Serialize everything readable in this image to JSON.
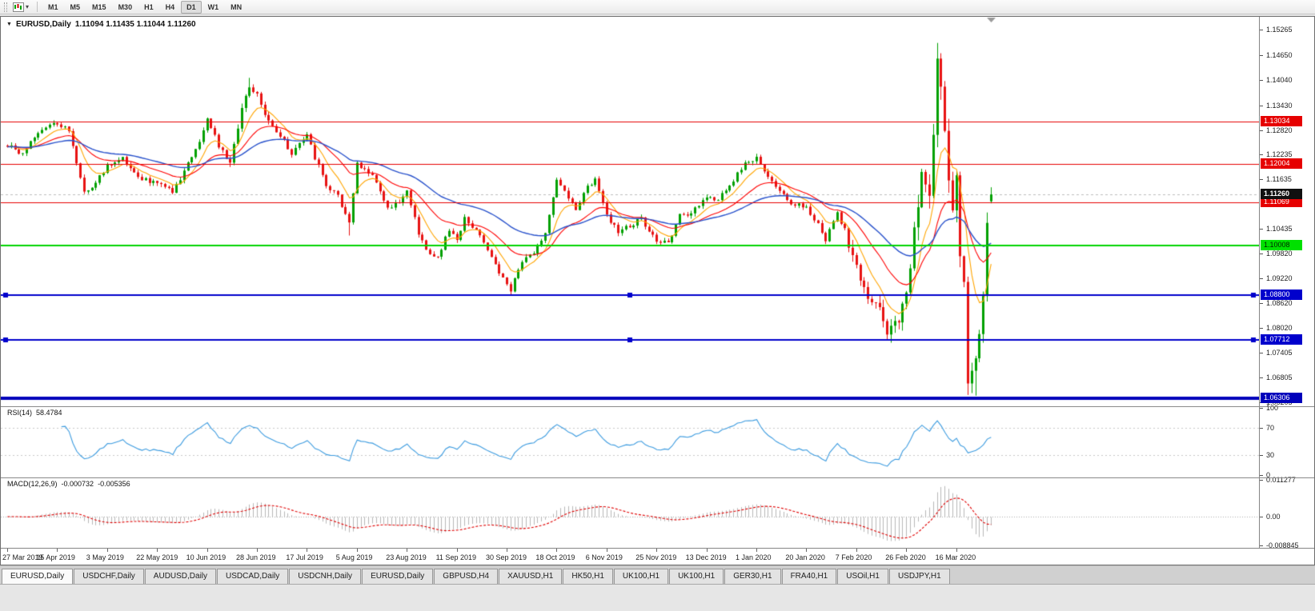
{
  "toolbar": {
    "timeframes": [
      "M1",
      "M5",
      "M15",
      "M30",
      "H1",
      "H4",
      "D1",
      "W1",
      "MN"
    ],
    "active_timeframe": "D1"
  },
  "chart": {
    "title": {
      "collapse_icon": "▼",
      "symbol_period": "EURUSD,Daily",
      "ohlc": "1.11094 1.11435 1.11044 1.11260"
    },
    "price_scale_ticks": [
      "1.15265",
      "1.14650",
      "1.14040",
      "1.13430",
      "1.12820",
      "1.12235",
      "1.11635",
      "1.10435",
      "1.09820",
      "1.09220",
      "1.08620",
      "1.08020",
      "1.07405",
      "1.06805",
      "1.06205"
    ],
    "current_price": {
      "value": "1.11260",
      "price": 1.1126,
      "label_bg": "#101010",
      "label_fg": "#ffffff"
    },
    "levels": [
      {
        "value": "1.13034",
        "price": 1.13034,
        "color": "#e60000",
        "label_bg": "#e60000",
        "label_fg": "#ffffff",
        "width": 1
      },
      {
        "value": "1.12004",
        "price": 1.12004,
        "color": "#e60000",
        "label_bg": "#e60000",
        "label_fg": "#ffffff",
        "width": 1
      },
      {
        "value": "1.11069",
        "price": 1.11069,
        "color": "#e60000",
        "label_bg": "#e60000",
        "label_fg": "#ffffff",
        "width": 1
      },
      {
        "value": "1.10008",
        "price": 1.10008,
        "color": "#00d400",
        "label_bg": "#00e000",
        "label_fg": "#002200",
        "width": 2
      },
      {
        "value": "1.08800",
        "price": 1.088,
        "color": "#0000cc",
        "label_bg": "#0000cc",
        "label_fg": "#ffffff",
        "width": 2,
        "handles": true
      },
      {
        "value": "1.07712",
        "price": 1.07712,
        "color": "#0000cc",
        "label_bg": "#0000cc",
        "label_fg": "#ffffff",
        "width": 2,
        "handles": true
      },
      {
        "value": "1.06306",
        "price": 1.06306,
        "color": "#0000bb",
        "label_bg": "#0000bb",
        "label_fg": "#ffffff",
        "width": 4
      }
    ]
  },
  "rsi": {
    "name": "RSI(14)",
    "value": "58.4784",
    "scale": [
      {
        "t": "100",
        "v": 100
      },
      {
        "t": "70",
        "v": 70
      },
      {
        "t": "30",
        "v": 30
      },
      {
        "t": "0",
        "v": 0
      }
    ],
    "levels": [
      70,
      30
    ]
  },
  "macd": {
    "name": "MACD(12,26,9)",
    "value_main": "-0.000732",
    "value_signal": "-0.005356",
    "scale": [
      {
        "t": "0.011277",
        "v": 0.011277
      },
      {
        "t": "0.00",
        "v": 0
      },
      {
        "t": "-0.008845",
        "v": -0.008845
      }
    ],
    "range": [
      0.011277,
      -0.008845
    ]
  },
  "time_axis": {
    "labels": [
      {
        "t": "27 Mar 2019",
        "i": 0
      },
      {
        "t": "15 Apr 2019",
        "i": 13
      },
      {
        "t": "3 May 2019",
        "i": 26
      },
      {
        "t": "22 May 2019",
        "i": 39
      },
      {
        "t": "10 Jun 2019",
        "i": 52
      },
      {
        "t": "28 Jun 2019",
        "i": 65
      },
      {
        "t": "17 Jul 2019",
        "i": 78
      },
      {
        "t": "5 Aug 2019",
        "i": 91
      },
      {
        "t": "23 Aug 2019",
        "i": 104
      },
      {
        "t": "11 Sep 2019",
        "i": 117
      },
      {
        "t": "30 Sep 2019",
        "i": 130
      },
      {
        "t": "18 Oct 2019",
        "i": 143
      },
      {
        "t": "6 Nov 2019",
        "i": 156
      },
      {
        "t": "25 Nov 2019",
        "i": 169
      },
      {
        "t": "13 Dec 2019",
        "i": 182
      },
      {
        "t": "1 Jan 2020",
        "i": 195
      },
      {
        "t": "20 Jan 2020",
        "i": 208
      },
      {
        "t": "7 Feb 2020",
        "i": 221
      },
      {
        "t": "26 Feb 2020",
        "i": 234
      },
      {
        "t": "16 Mar 2020",
        "i": 247
      }
    ]
  },
  "tabs": [
    {
      "label": "EURUSD,Daily",
      "active": true
    },
    {
      "label": "USDCHF,Daily"
    },
    {
      "label": "AUDUSD,Daily"
    },
    {
      "label": "USDCAD,Daily"
    },
    {
      "label": "USDCNH,Daily"
    },
    {
      "label": "EURUSD,Daily"
    },
    {
      "label": "GBPUSD,H4"
    },
    {
      "label": "XAUUSD,H1"
    },
    {
      "label": "HK50,H1"
    },
    {
      "label": "UK100,H1"
    },
    {
      "label": "UK100,H1"
    },
    {
      "label": "GER30,H1"
    },
    {
      "label": "FRA40,H1"
    },
    {
      "label": "USOil,H1"
    },
    {
      "label": "USDJPY,H1"
    }
  ],
  "chart_data": {
    "type": "candlestick",
    "symbol": "EURUSD",
    "period": "Daily",
    "title": "EURUSD,Daily",
    "bars": 257,
    "ohlc_current": {
      "open": 1.11094,
      "high": 1.11435,
      "low": 1.11044,
      "close": 1.1126
    },
    "y_axis_range": [
      1.0612,
      1.1545
    ],
    "x_tick_labels": [
      "27 Mar 2019",
      "15 Apr 2019",
      "3 May 2019",
      "22 May 2019",
      "10 Jun 2019",
      "28 Jun 2019",
      "17 Jul 2019",
      "5 Aug 2019",
      "23 Aug 2019",
      "11 Sep 2019",
      "30 Sep 2019",
      "18 Oct 2019",
      "6 Nov 2019",
      "25 Nov 2019",
      "13 Dec 2019",
      "1 Jan 2020",
      "20 Jan 2020",
      "7 Feb 2020",
      "26 Feb 2020",
      "16 Mar 2020"
    ],
    "horizontal_levels": [
      1.13034,
      1.12004,
      1.11069,
      1.10008,
      1.088,
      1.07712,
      1.06306
    ],
    "candle_colors": {
      "up": "#00a000",
      "down": "#e81212"
    },
    "price_waypoints": [
      [
        0,
        1.1245
      ],
      [
        4,
        1.1225
      ],
      [
        8,
        1.128
      ],
      [
        13,
        1.13
      ],
      [
        16,
        1.1285
      ],
      [
        20,
        1.113
      ],
      [
        23,
        1.1155
      ],
      [
        26,
        1.1195
      ],
      [
        30,
        1.1215
      ],
      [
        34,
        1.1165
      ],
      [
        39,
        1.1155
      ],
      [
        43,
        1.1135
      ],
      [
        46,
        1.118
      ],
      [
        50,
        1.1255
      ],
      [
        52,
        1.131
      ],
      [
        55,
        1.1245
      ],
      [
        58,
        1.12
      ],
      [
        61,
        1.134
      ],
      [
        63,
        1.1395
      ],
      [
        65,
        1.137
      ],
      [
        68,
        1.13
      ],
      [
        71,
        1.127
      ],
      [
        74,
        1.1225
      ],
      [
        78,
        1.127
      ],
      [
        80,
        1.1215
      ],
      [
        83,
        1.115
      ],
      [
        86,
        1.112
      ],
      [
        89,
        1.106
      ],
      [
        91,
        1.12
      ],
      [
        95,
        1.117
      ],
      [
        99,
        1.109
      ],
      [
        102,
        1.111
      ],
      [
        104,
        1.114
      ],
      [
        107,
        1.103
      ],
      [
        109,
        1.099
      ],
      [
        112,
        1.0975
      ],
      [
        115,
        1.104
      ],
      [
        117,
        1.101
      ],
      [
        119,
        1.107
      ],
      [
        122,
        1.104
      ],
      [
        125,
        1.099
      ],
      [
        128,
        1.0935
      ],
      [
        131,
        1.0895
      ],
      [
        134,
        1.096
      ],
      [
        137,
        1.0985
      ],
      [
        140,
        1.1035
      ],
      [
        143,
        1.1165
      ],
      [
        145,
        1.114
      ],
      [
        148,
        1.1085
      ],
      [
        151,
        1.1145
      ],
      [
        153,
        1.116
      ],
      [
        156,
        1.1075
      ],
      [
        159,
        1.1035
      ],
      [
        162,
        1.105
      ],
      [
        165,
        1.1065
      ],
      [
        169,
        1.1015
      ],
      [
        172,
        1.1005
      ],
      [
        175,
        1.108
      ],
      [
        178,
        1.108
      ],
      [
        182,
        1.112
      ],
      [
        185,
        1.1115
      ],
      [
        188,
        1.115
      ],
      [
        192,
        1.12
      ],
      [
        195,
        1.1215
      ],
      [
        198,
        1.1165
      ],
      [
        201,
        1.113
      ],
      [
        204,
        1.1105
      ],
      [
        208,
        1.1095
      ],
      [
        211,
        1.1055
      ],
      [
        213,
        1.1015
      ],
      [
        216,
        1.108
      ],
      [
        218,
        1.104
      ],
      [
        221,
        1.0945
      ],
      [
        224,
        1.087
      ],
      [
        227,
        1.084
      ],
      [
        229,
        1.0795
      ],
      [
        231,
        1.0805
      ],
      [
        233,
        1.085
      ],
      [
        234,
        1.0885
      ],
      [
        236,
        1.1035
      ],
      [
        238,
        1.117
      ],
      [
        240,
        1.1135
      ],
      [
        242,
        1.145
      ],
      [
        244,
        1.128
      ],
      [
        245,
        1.1185
      ],
      [
        246,
        1.111
      ],
      [
        247,
        1.1185
      ],
      [
        248,
        1.1
      ],
      [
        249,
        1.0915
      ],
      [
        250,
        1.069
      ],
      [
        251,
        1.07
      ],
      [
        252,
        1.073
      ],
      [
        253,
        1.079
      ],
      [
        254,
        1.0885
      ],
      [
        255,
        1.1035
      ],
      [
        256,
        1.1126
      ]
    ],
    "pinned_extremes": {
      "63": {
        "high": 1.141
      },
      "89": {
        "low": 1.1026
      },
      "131": {
        "low": 1.0879
      },
      "229": {
        "low": 1.0778
      },
      "242": {
        "high": 1.1495
      },
      "250": {
        "low": 1.0655
      },
      "252": {
        "low": 1.0636
      }
    },
    "indicators": {
      "moving_averages": [
        {
          "type": "ema",
          "period": 8,
          "color": "#ffa500"
        },
        {
          "type": "ema",
          "period": 21,
          "color": "#ff0000"
        },
        {
          "type": "ema",
          "period": 45,
          "color": "#2952cc"
        }
      ],
      "rsi": {
        "period": 14,
        "current": 58.4784,
        "color": "#3d9ce0"
      },
      "macd": {
        "fast": 12,
        "slow": 26,
        "signal": 9,
        "main_current": -0.000732,
        "signal_current": -0.005356,
        "hist_color": "#b8b8b8",
        "signal_color": "#e00000",
        "range": [
          0.011277,
          -0.008845
        ]
      }
    }
  }
}
